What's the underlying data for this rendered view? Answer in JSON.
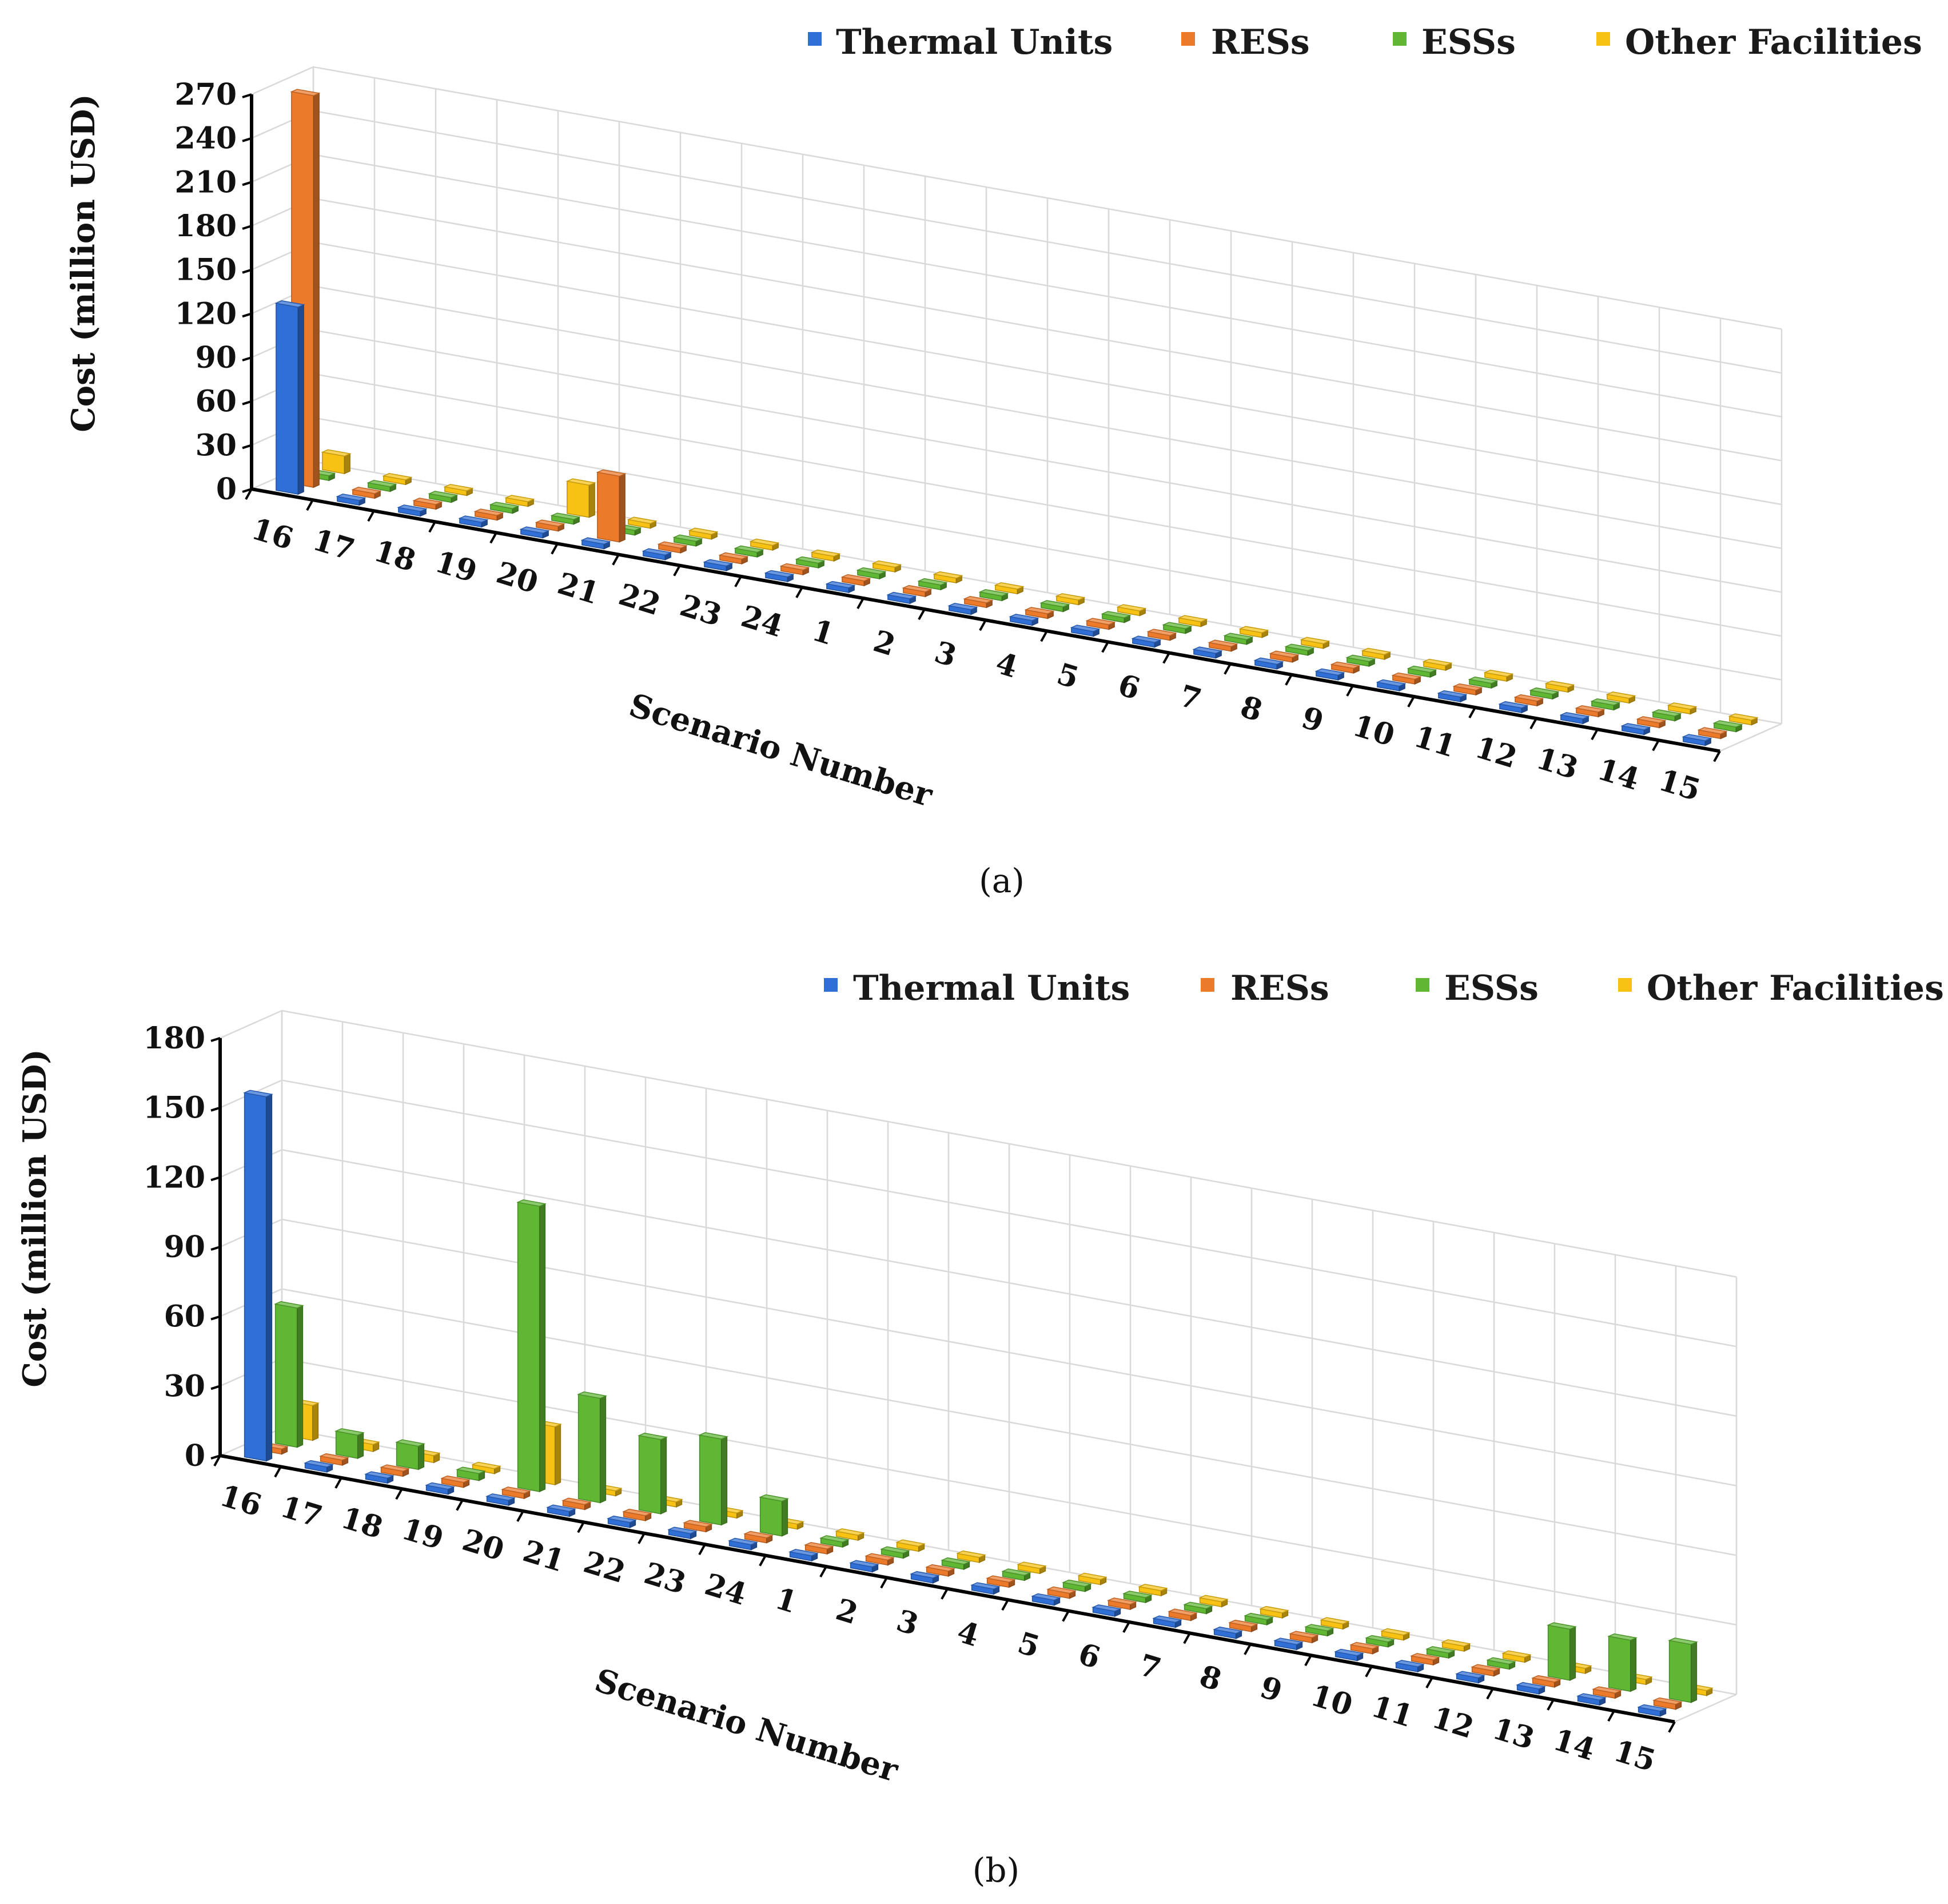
{
  "figure": {
    "panels": [
      "(a)",
      "(b)"
    ]
  },
  "colors": {
    "thermal": "#2f6fd6",
    "res": "#ec7a2b",
    "ess": "#5fb734",
    "other": "#f7c213"
  },
  "chart_data": [
    {
      "type": "bar",
      "panel": "(a)",
      "title": "",
      "xlabel": "Scenario Number",
      "ylabel": "Cost (million USD)",
      "ylim": [
        0,
        270
      ],
      "yticks": [
        0,
        30,
        60,
        90,
        120,
        150,
        180,
        210,
        240,
        270
      ],
      "categories": [
        "16",
        "17",
        "18",
        "19",
        "20",
        "21",
        "22",
        "23",
        "24",
        "1",
        "2",
        "3",
        "4",
        "5",
        "6",
        "7",
        "8",
        "9",
        "10",
        "11",
        "12",
        "13",
        "14",
        "15"
      ],
      "legend": [
        "Thermal Units",
        "RESs",
        "ESSs",
        "Other Facilities"
      ],
      "legend_position": "top-right",
      "series": [
        {
          "name": "Thermal Units",
          "values": [
            128,
            1,
            1,
            1,
            1,
            1,
            1,
            1,
            1,
            1,
            1,
            1,
            1,
            1,
            1,
            1,
            1,
            1,
            1,
            1,
            1,
            1,
            1,
            1
          ]
        },
        {
          "name": "RESs",
          "values": [
            268,
            0.5,
            0.5,
            0.5,
            0.5,
            45,
            0.5,
            0.5,
            0.5,
            0.5,
            0.5,
            0.5,
            0.5,
            0.5,
            0.5,
            0.5,
            0.5,
            0.5,
            0.5,
            0.5,
            0.5,
            0.5,
            0.5,
            0.5
          ]
        },
        {
          "name": "ESSs",
          "values": [
            0.5,
            0.5,
            0.5,
            0.5,
            0.5,
            0.5,
            0.5,
            0.5,
            0.5,
            0.5,
            0.5,
            0.5,
            0.5,
            0.5,
            0.5,
            0.5,
            0.5,
            0.5,
            0.5,
            0.5,
            0.5,
            0.5,
            0.5,
            0.5
          ]
        },
        {
          "name": "Other Facilities",
          "values": [
            12,
            0.5,
            0.5,
            0.5,
            22,
            0.5,
            0.5,
            0.5,
            0.5,
            0.5,
            0.5,
            0.5,
            0.5,
            0.5,
            0.5,
            0.5,
            0.5,
            0.5,
            0.5,
            0.5,
            0.5,
            0.5,
            0.5,
            0.5
          ]
        }
      ]
    },
    {
      "type": "bar",
      "panel": "(b)",
      "title": "",
      "xlabel": "Scenario Number",
      "ylabel": "Cost (million USD)",
      "ylim": [
        0,
        180
      ],
      "yticks": [
        0,
        30,
        60,
        90,
        120,
        150,
        180
      ],
      "categories": [
        "16",
        "17",
        "18",
        "19",
        "20",
        "21",
        "22",
        "23",
        "24",
        "1",
        "2",
        "3",
        "4",
        "5",
        "6",
        "7",
        "8",
        "9",
        "10",
        "11",
        "12",
        "13",
        "14",
        "15"
      ],
      "legend": [
        "Thermal Units",
        "RESs",
        "ESSs",
        "Other Facilities"
      ],
      "legend_position": "top-right",
      "series": [
        {
          "name": "Thermal Units",
          "values": [
            157,
            2,
            2,
            2,
            2,
            2,
            2,
            2,
            2,
            2,
            2,
            2,
            2,
            2,
            2,
            2,
            2,
            2,
            2,
            2,
            2,
            2,
            2,
            2
          ]
        },
        {
          "name": "RESs",
          "values": [
            0.5,
            0.5,
            0.5,
            0.5,
            0.5,
            0.5,
            0.5,
            0.5,
            0.5,
            0.5,
            0.5,
            0.5,
            0.5,
            0.5,
            0.5,
            0.5,
            0.5,
            0.5,
            0.5,
            0.5,
            0.5,
            0.5,
            0.5,
            0.5
          ]
        },
        {
          "name": "ESSs",
          "values": [
            60,
            10,
            10,
            3,
            123,
            45,
            32,
            37,
            15,
            0.5,
            0.5,
            0.5,
            0.5,
            0.5,
            0.5,
            0.5,
            0.5,
            0.5,
            0.5,
            0.5,
            0.5,
            22,
            22,
            25
          ]
        },
        {
          "name": "Other Facilities",
          "values": [
            15,
            3,
            3,
            2,
            25,
            0.5,
            0.5,
            0.5,
            0.5,
            0.5,
            0.5,
            0.5,
            0.5,
            0.5,
            0.5,
            0.5,
            0.5,
            0.5,
            0.5,
            0.5,
            0.5,
            0.5,
            0.5,
            0.5
          ]
        }
      ]
    }
  ]
}
